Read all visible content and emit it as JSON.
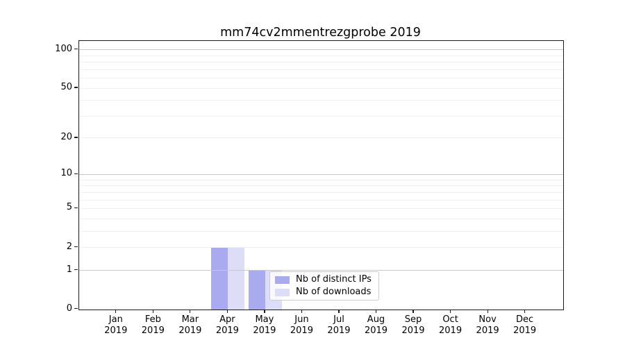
{
  "chart_data": {
    "type": "bar",
    "title": "mm74cv2mmentrezgprobe 2019",
    "categories": [
      "Jan",
      "Feb",
      "Mar",
      "Apr",
      "May",
      "Jun",
      "Jul",
      "Aug",
      "Sep",
      "Oct",
      "Nov",
      "Dec"
    ],
    "category_year": "2019",
    "series": [
      {
        "name": "Nb of distinct IPs",
        "color": "#aaaaee",
        "values": [
          0,
          0,
          0,
          2,
          1,
          0,
          0,
          0,
          0,
          0,
          0,
          0
        ]
      },
      {
        "name": "Nb of downloads",
        "color": "#ddddf8",
        "values": [
          0,
          0,
          0,
          2,
          1,
          0,
          0,
          0,
          0,
          0,
          0,
          0
        ]
      }
    ],
    "xlabel": "",
    "ylabel": "",
    "yscale": "log1p",
    "ylim": [
      0,
      116
    ],
    "ytick_values": [
      0,
      1,
      2,
      5,
      10,
      20,
      50,
      100
    ],
    "grid": {
      "on": true,
      "major_values": [
        1,
        10,
        100
      ],
      "minor_values": [
        2,
        3,
        4,
        5,
        6,
        7,
        8,
        9,
        20,
        30,
        40,
        50,
        60,
        70,
        80,
        90
      ],
      "major_color": "#c9c9c9",
      "minor_color": "#f0f0f0"
    },
    "legend_position": "lower-center-inside",
    "colors": {
      "axis": "#1a1a1a",
      "background": "#ffffff",
      "legend_border": "#cccccc"
    }
  }
}
